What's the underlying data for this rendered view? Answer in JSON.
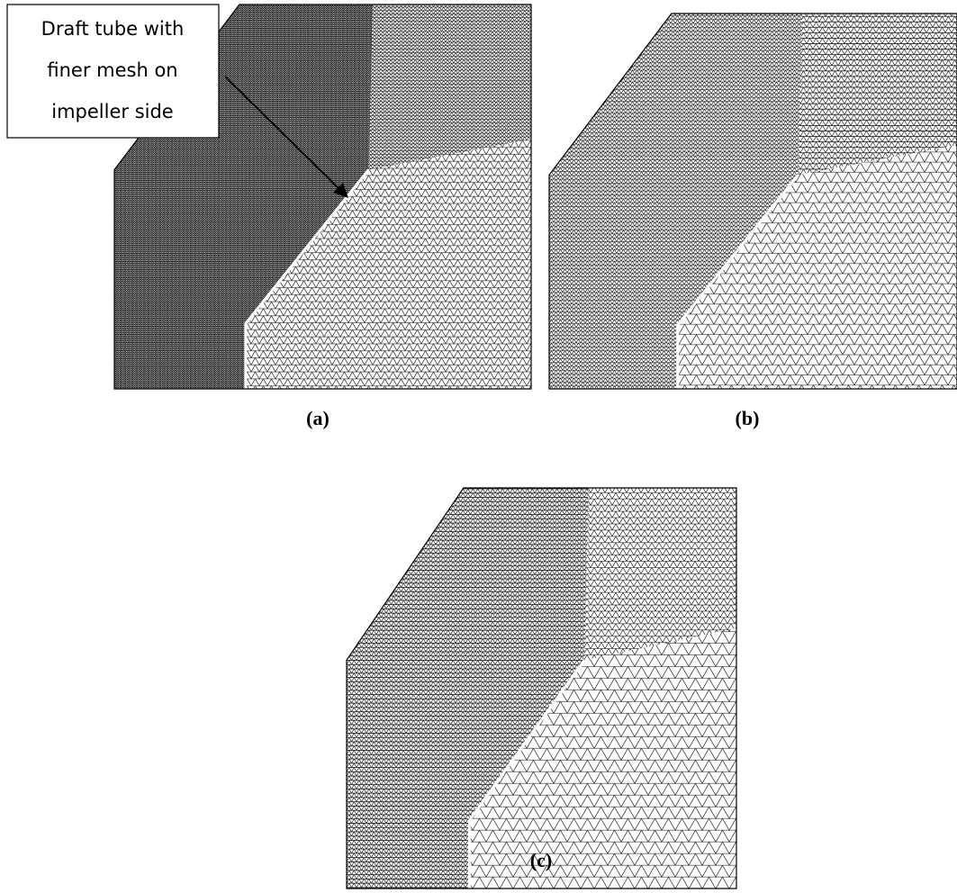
{
  "annotation": {
    "lines": [
      "Draft tube with",
      "finer mesh on",
      "impeller side"
    ]
  },
  "panels": [
    {
      "label": "(a)"
    },
    {
      "label": "(b)"
    },
    {
      "label": "(c)"
    }
  ]
}
